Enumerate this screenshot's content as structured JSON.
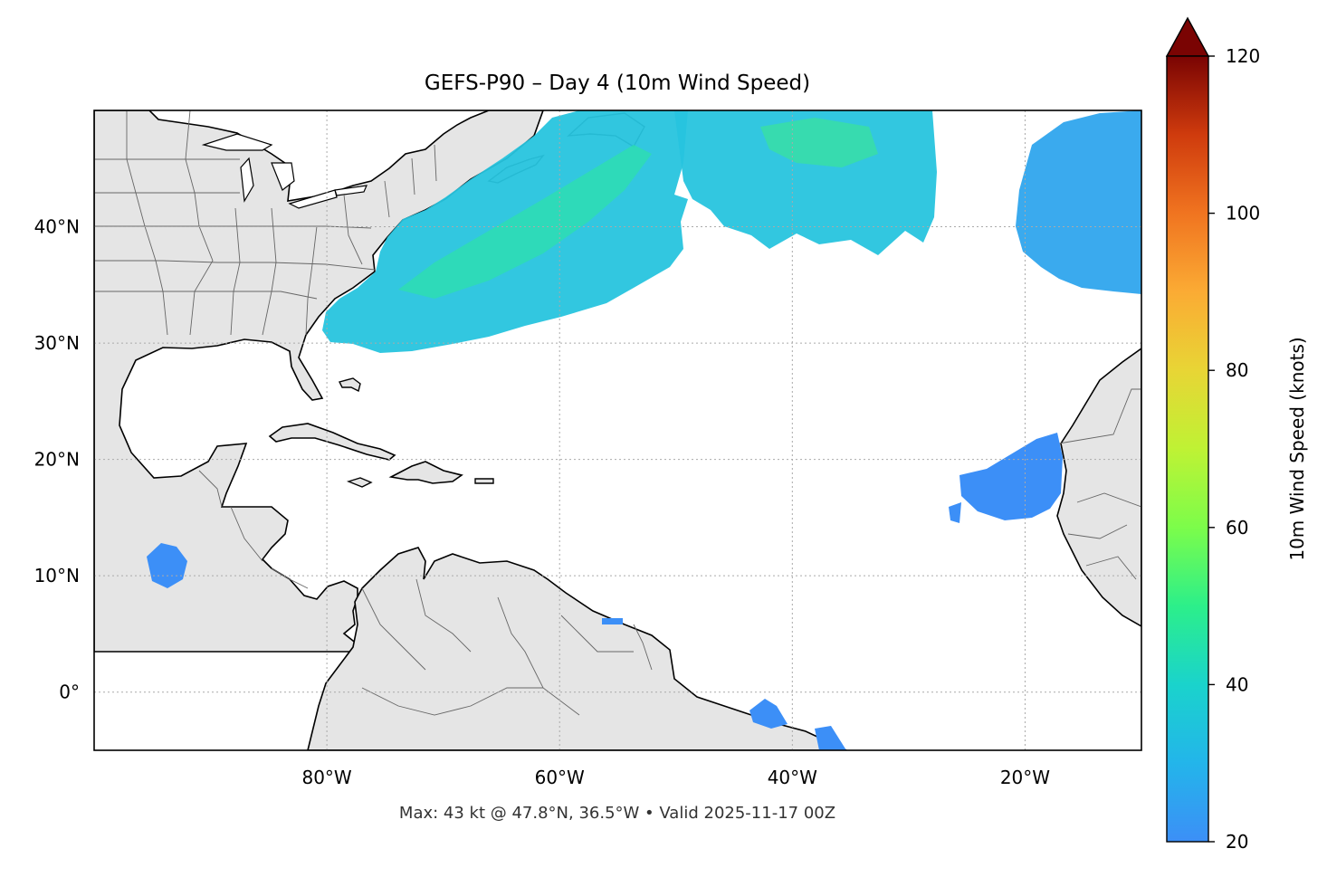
{
  "title": "GEFS-P90 – Day 4 (10m Wind Speed)",
  "footer": "Max: 43 kt @ 47.8°N, 36.5°W • Valid 2025-11-17 00Z",
  "map": {
    "lon_range": [
      -100,
      -10
    ],
    "lat_range": [
      -5,
      50
    ],
    "lat_ticks": [
      {
        "v": 40,
        "label": "40°N"
      },
      {
        "v": 30,
        "label": "30°N"
      },
      {
        "v": 20,
        "label": "20°N"
      },
      {
        "v": 10,
        "label": "10°N"
      },
      {
        "v": 0,
        "label": "0°"
      }
    ],
    "lon_ticks": [
      {
        "v": -80,
        "label": "80°W"
      },
      {
        "v": -60,
        "label": "60°W"
      },
      {
        "v": -40,
        "label": "40°W"
      },
      {
        "v": -20,
        "label": "20°W"
      }
    ],
    "gridlines": "dotted",
    "land_color": "#e5e5e5",
    "ocean_color": "#ffffff"
  },
  "colorbar": {
    "label": "10m Wind Speed (knots)",
    "min": 20,
    "max": 120,
    "extend": "max",
    "ticks": [
      20,
      40,
      60,
      80,
      100,
      120
    ],
    "colormap": "turbo"
  },
  "wind_max": {
    "value_kt": 43,
    "lat": 47.8,
    "lon": -36.5
  }
}
